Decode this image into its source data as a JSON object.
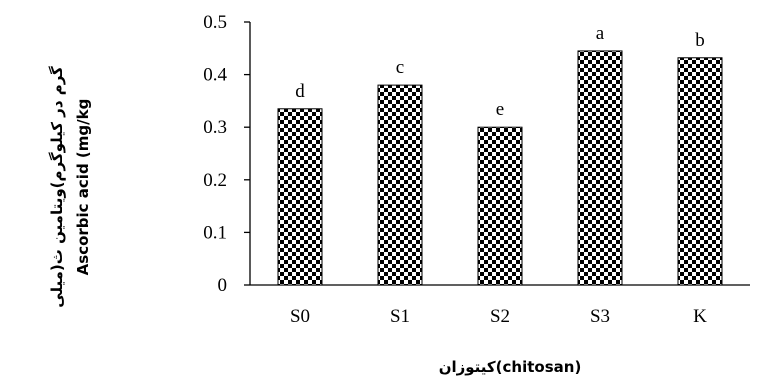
{
  "chart_data": {
    "type": "bar",
    "categories": [
      "S0",
      "S1",
      "S2",
      "S3",
      "K"
    ],
    "values": [
      0.335,
      0.38,
      0.3,
      0.445,
      0.432
    ],
    "data_labels": [
      "d",
      "c",
      "e",
      "a",
      "b"
    ],
    "yticks": [
      "0",
      "0.1",
      "0.2",
      "0.3",
      "0.4",
      "0.5"
    ],
    "ylim": [
      0,
      0.5
    ],
    "ylabel_line1": "گرم در کیلوگرم)ویتامین ث(میلی",
    "ylabel_line2": "Ascorbic acid (mg/kg",
    "xlabel": "(chitosan)کیتوزان",
    "bar_pattern": "checkerboard",
    "colors": {
      "bar_dark": "#000000",
      "bar_light": "#ffffff",
      "axis": "#000000"
    }
  }
}
